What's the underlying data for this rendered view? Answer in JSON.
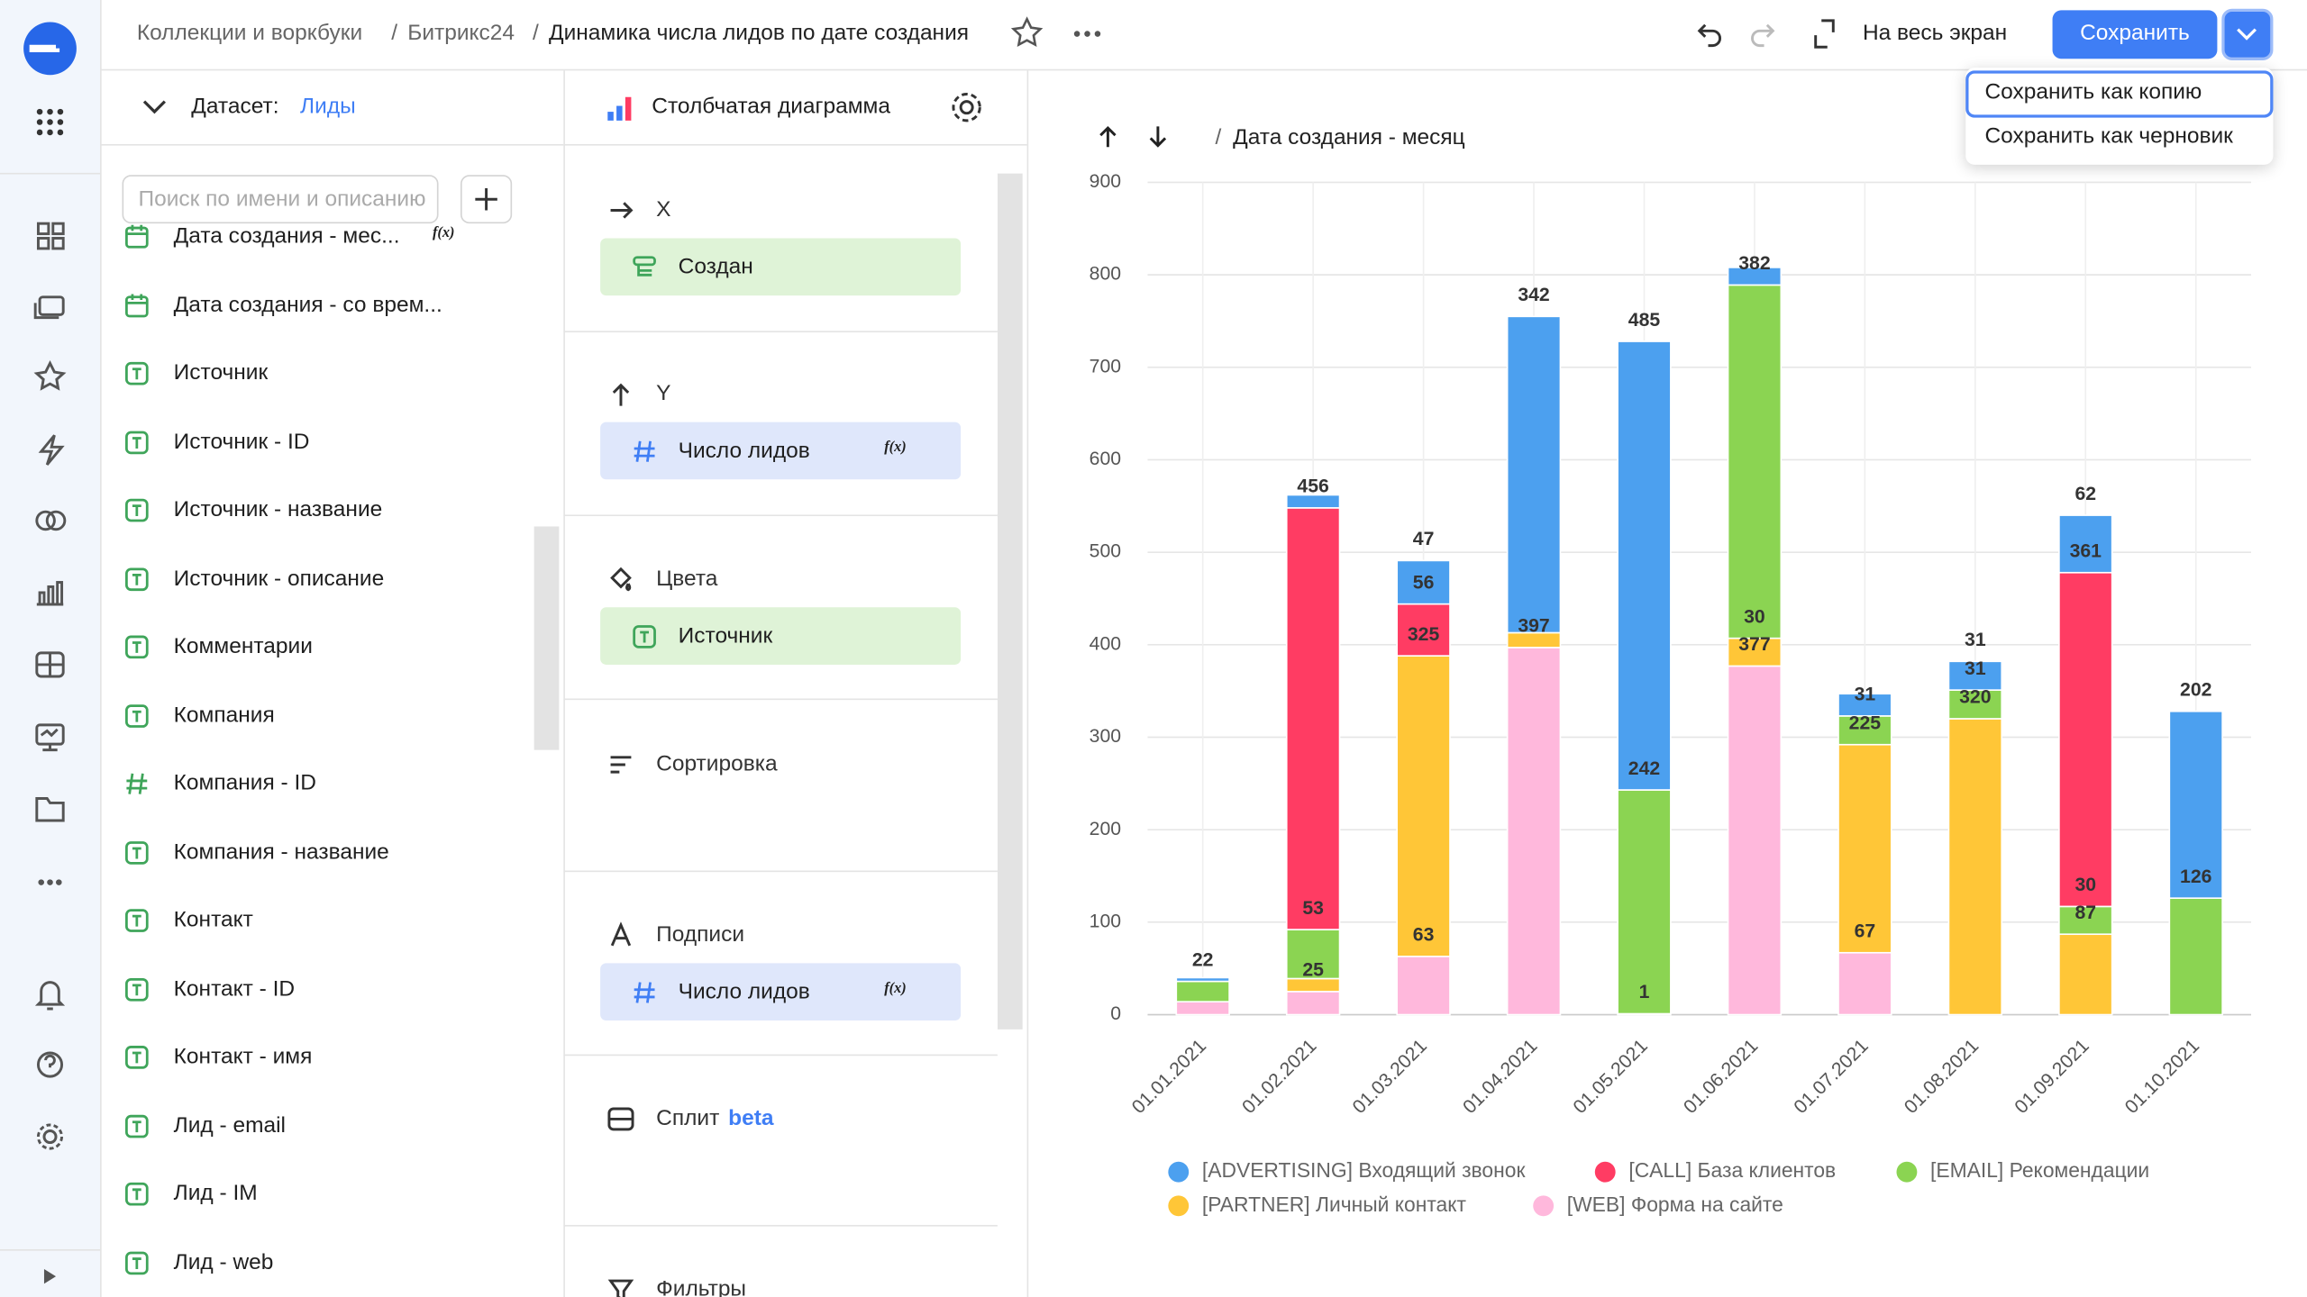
{
  "header": {
    "breadcrumbs": [
      "Коллекции и воркбуки",
      "Битрикс24"
    ],
    "separator": "/",
    "title": "Динамика числа лидов по дате создания",
    "fullscreen": "На весь экран",
    "save": "Сохранить"
  },
  "save_menu": [
    "Сохранить как копию",
    "Сохранить как черновик"
  ],
  "dataset": {
    "label": "Датасет:",
    "name": "Лиды",
    "search_placeholder": "Поиск по имени и описанию",
    "formula_badge": "f(x)",
    "fields": [
      {
        "type": "date",
        "name": "Дата создания - мес...",
        "formula": true
      },
      {
        "type": "date",
        "name": "Дата создания - со врем...",
        "formula": false
      },
      {
        "type": "text",
        "name": "Источник",
        "formula": false
      },
      {
        "type": "text",
        "name": "Источник - ID",
        "formula": false
      },
      {
        "type": "text",
        "name": "Источник - название",
        "formula": false
      },
      {
        "type": "text",
        "name": "Источник - описание",
        "formula": false
      },
      {
        "type": "text",
        "name": "Комментарии",
        "formula": false
      },
      {
        "type": "text",
        "name": "Компания",
        "formula": false
      },
      {
        "type": "number",
        "name": "Компания - ID",
        "formula": false
      },
      {
        "type": "text",
        "name": "Компания - название",
        "formula": false
      },
      {
        "type": "text",
        "name": "Контакт",
        "formula": false
      },
      {
        "type": "text",
        "name": "Контакт - ID",
        "formula": false
      },
      {
        "type": "text",
        "name": "Контакт - имя",
        "formula": false
      },
      {
        "type": "text",
        "name": "Лид - email",
        "formula": false
      },
      {
        "type": "text",
        "name": "Лид - IM",
        "formula": false
      },
      {
        "type": "text",
        "name": "Лид - web",
        "formula": false
      }
    ]
  },
  "wizard": {
    "chart_type": "Столбчатая диаграмма",
    "sections": [
      {
        "title": "X",
        "items": [
          {
            "kind": "dimension",
            "icon": "tree",
            "name": "Создан",
            "formula": false
          }
        ]
      },
      {
        "title": "Y",
        "items": [
          {
            "kind": "measure",
            "icon": "number",
            "name": "Число лидов",
            "formula": true
          }
        ]
      },
      {
        "title": "Цвета",
        "items": [
          {
            "kind": "dimension",
            "icon": "text",
            "name": "Источник",
            "formula": false
          }
        ]
      },
      {
        "title": "Сортировка",
        "items": []
      },
      {
        "title": "Подписи",
        "items": [
          {
            "kind": "measure",
            "icon": "number",
            "name": "Число лидов",
            "formula": true
          }
        ]
      },
      {
        "title": "Сплит",
        "tag": "beta",
        "items": []
      },
      {
        "title": "Фильтры",
        "items": []
      }
    ]
  },
  "chart_data": {
    "type": "bar",
    "stacked": true,
    "title": "Дата создания - месяц",
    "categories": [
      "01.01.2021",
      "01.02.2021",
      "01.03.2021",
      "01.04.2021",
      "01.05.2021",
      "01.06.2021",
      "01.07.2021",
      "01.08.2021",
      "01.09.2021",
      "01.10.2021"
    ],
    "ylim": [
      0,
      900
    ],
    "yticks": [
      0,
      100,
      200,
      300,
      400,
      500,
      600,
      700,
      800,
      900
    ],
    "grid": true,
    "series": [
      {
        "name": "[WEB] Форма на сайте",
        "color": "#ffb8dc",
        "values": [
          14,
          25,
          63,
          397,
          1,
          377,
          67,
          null,
          null,
          null
        ],
        "value_labels": [
          null,
          "25",
          "63",
          "397",
          "1",
          "377",
          "67",
          null,
          null,
          null
        ]
      },
      {
        "name": "[PARTNER] Личный контакт",
        "color": "#ffc637",
        "values": [
          null,
          14,
          325,
          16,
          null,
          30,
          225,
          320,
          87,
          null
        ],
        "value_labels": [
          null,
          null,
          "325",
          null,
          null,
          "30",
          "225",
          "320",
          "87",
          null
        ]
      },
      {
        "name": "[EMAIL] Рекомендации",
        "color": "#8bd452",
        "values": [
          22,
          53,
          null,
          null,
          242,
          382,
          31,
          31,
          30,
          126
        ],
        "value_labels": [
          "22",
          "53",
          null,
          null,
          "242",
          "382",
          "31",
          "31",
          "30",
          "126"
        ]
      },
      {
        "name": "[CALL] База клиентов",
        "color": "#ff3c63",
        "values": [
          null,
          456,
          56,
          null,
          null,
          null,
          null,
          null,
          361,
          null
        ],
        "value_labels": [
          null,
          "456",
          "56",
          null,
          null,
          null,
          null,
          null,
          "361",
          null
        ]
      },
      {
        "name": "[ADVERTISING] Входящий звонок",
        "color": "#4ca0ef",
        "values": [
          4,
          14,
          47,
          342,
          485,
          19,
          24,
          31,
          62,
          202
        ],
        "value_labels": [
          null,
          null,
          "47",
          "342",
          "485",
          null,
          null,
          "31",
          "62",
          "202"
        ]
      }
    ]
  }
}
